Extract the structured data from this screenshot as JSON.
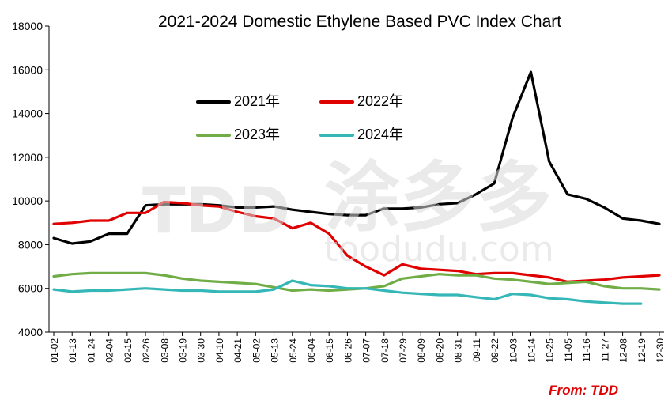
{
  "chart_data": {
    "type": "line",
    "title": "2021-2024 Domestic Ethylene Based PVC Index Chart",
    "source": "From: TDD",
    "watermark": {
      "logo": "TDD",
      "chinese": "涂多多",
      "url": "toodudu.com"
    },
    "xlabel": "",
    "ylabel": "",
    "ylim": [
      4000,
      18000
    ],
    "yticks": [
      4000,
      6000,
      8000,
      10000,
      12000,
      14000,
      16000,
      18000
    ],
    "categories": [
      "01-02",
      "01-13",
      "01-24",
      "02-04",
      "02-15",
      "02-26",
      "03-08",
      "03-19",
      "03-30",
      "04-10",
      "04-21",
      "05-02",
      "05-13",
      "05-24",
      "06-04",
      "06-15",
      "06-26",
      "07-07",
      "07-18",
      "07-29",
      "08-09",
      "08-20",
      "08-31",
      "09-11",
      "09-22",
      "10-03",
      "10-14",
      "10-25",
      "11-05",
      "11-16",
      "11-27",
      "12-08",
      "12-19",
      "12-30"
    ],
    "series": [
      {
        "name": "2021年",
        "color": "#000000",
        "values": [
          8300,
          8050,
          8150,
          8500,
          8500,
          9800,
          9850,
          9850,
          9850,
          9800,
          9700,
          9700,
          9750,
          9600,
          9500,
          9400,
          9350,
          9350,
          9650,
          9650,
          9700,
          9850,
          9900,
          10300,
          10800,
          13800,
          15900,
          11800,
          10300,
          10100,
          9700,
          9200,
          9100,
          8950
        ]
      },
      {
        "name": "2022年",
        "color": "#e00000",
        "values": [
          8950,
          9000,
          9100,
          9100,
          9450,
          9450,
          9950,
          9900,
          9800,
          9750,
          9500,
          9300,
          9200,
          8750,
          9000,
          8500,
          7500,
          7000,
          6600,
          7100,
          6900,
          6850,
          6800,
          6650,
          6700,
          6700,
          6600,
          6500,
          6300,
          6350,
          6400,
          6500,
          6550,
          6600
        ]
      },
      {
        "name": "2023年",
        "color": "#70ad47",
        "values": [
          6550,
          6650,
          6700,
          6700,
          6700,
          6700,
          6600,
          6450,
          6350,
          6300,
          6250,
          6200,
          6050,
          5900,
          5950,
          5900,
          5950,
          6000,
          6100,
          6450,
          6550,
          6650,
          6600,
          6600,
          6450,
          6400,
          6300,
          6200,
          6250,
          6300,
          6100,
          6000,
          6000,
          5950
        ]
      },
      {
        "name": "2024年",
        "color": "#36b7b7",
        "values": [
          5950,
          5850,
          5900,
          5900,
          5950,
          6000,
          5950,
          5900,
          5900,
          5850,
          5850,
          5850,
          5950,
          6350,
          6150,
          6100,
          6000,
          6000,
          5900,
          5800,
          5750,
          5700,
          5700,
          5600,
          5500,
          5750,
          5700,
          5550,
          5500,
          5400,
          5350,
          5300,
          5300,
          null
        ]
      }
    ],
    "legend_position": "upper-left inside plot"
  }
}
